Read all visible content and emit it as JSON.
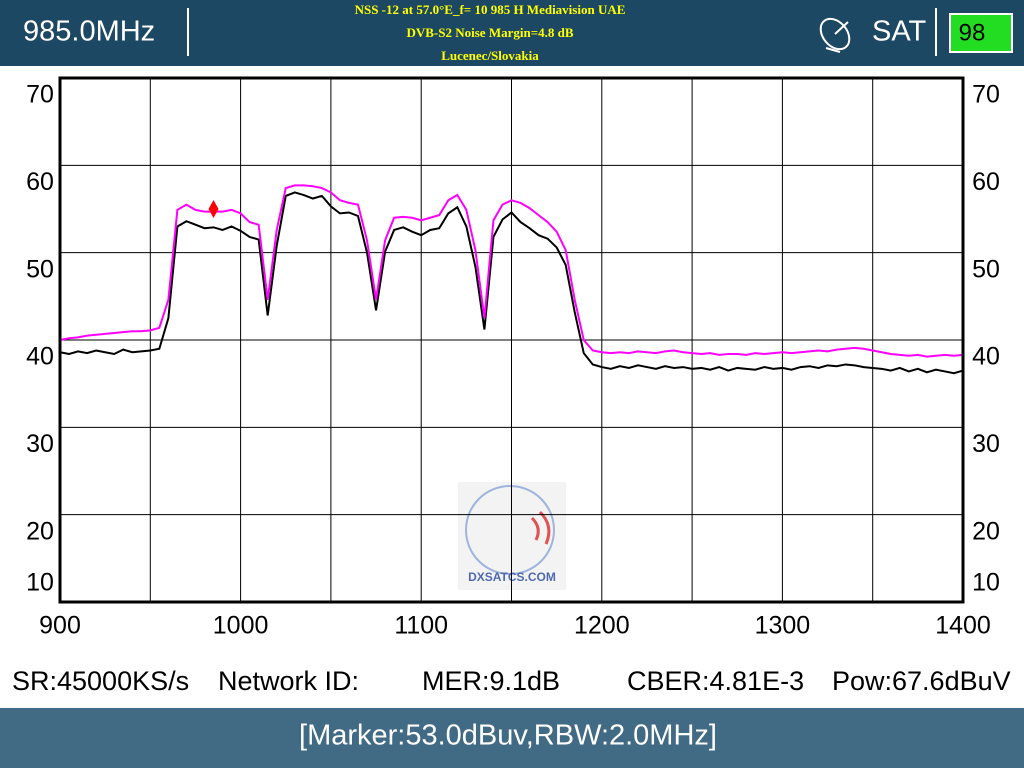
{
  "header": {
    "frequency": "985.0MHz",
    "title_lines": [
      "NSS -12 at 57.0°E_f= 10 985 H Mediavision UAE",
      "DVB-S2 Noise Margin=4.8 dB",
      "Lucenec/Slovakia"
    ],
    "mode": "SAT",
    "battery": "98"
  },
  "chart_data": {
    "type": "line",
    "x": [
      900,
      905,
      910,
      915,
      920,
      925,
      930,
      935,
      940,
      945,
      950,
      955,
      960,
      965,
      970,
      975,
      980,
      985,
      990,
      995,
      1000,
      1005,
      1010,
      1015,
      1020,
      1025,
      1030,
      1035,
      1040,
      1045,
      1050,
      1055,
      1060,
      1065,
      1070,
      1075,
      1080,
      1085,
      1090,
      1095,
      1100,
      1105,
      1110,
      1115,
      1120,
      1125,
      1130,
      1135,
      1140,
      1145,
      1150,
      1155,
      1160,
      1165,
      1170,
      1175,
      1180,
      1185,
      1190,
      1195,
      1200,
      1205,
      1210,
      1215,
      1220,
      1225,
      1230,
      1235,
      1240,
      1245,
      1250,
      1255,
      1260,
      1265,
      1270,
      1275,
      1280,
      1285,
      1290,
      1295,
      1300,
      1305,
      1310,
      1315,
      1320,
      1325,
      1330,
      1335,
      1340,
      1345,
      1350,
      1355,
      1360,
      1365,
      1370,
      1375,
      1380,
      1385,
      1390,
      1395,
      1400
    ],
    "series": [
      {
        "color": "#ff00ff",
        "values": [
          40.0,
          40.2,
          40.3,
          40.5,
          40.6,
          40.7,
          40.8,
          40.9,
          41.0,
          41.0,
          41.1,
          41.4,
          44.6,
          54.9,
          55.5,
          54.9,
          54.7,
          54.7,
          54.7,
          54.9,
          54.5,
          53.5,
          53.2,
          44.6,
          52.6,
          57.4,
          57.7,
          57.7,
          57.6,
          57.4,
          56.9,
          56.0,
          55.7,
          55.5,
          51.4,
          44.6,
          51.4,
          54.0,
          54.1,
          54.0,
          53.7,
          54.0,
          54.3,
          56.0,
          56.6,
          54.9,
          50.3,
          42.5,
          53.7,
          55.5,
          56.0,
          55.7,
          55.1,
          54.3,
          53.5,
          52.4,
          50.3,
          44.6,
          40.0,
          38.8,
          38.6,
          38.5,
          38.6,
          38.5,
          38.7,
          38.6,
          38.5,
          38.7,
          38.8,
          38.6,
          38.5,
          38.4,
          38.5,
          38.3,
          38.4,
          38.4,
          38.3,
          38.5,
          38.4,
          38.5,
          38.6,
          38.5,
          38.6,
          38.7,
          38.8,
          38.7,
          38.9,
          39.0,
          39.1,
          39.0,
          38.8,
          38.6,
          38.4,
          38.3,
          38.2,
          38.3,
          38.1,
          38.2,
          38.3,
          38.2,
          38.3
        ]
      },
      {
        "color": "#000000",
        "values": [
          38.6,
          38.4,
          38.7,
          38.5,
          38.8,
          38.6,
          38.4,
          38.9,
          38.6,
          38.7,
          38.8,
          39.0,
          42.5,
          53.0,
          53.6,
          53.2,
          52.8,
          52.9,
          52.6,
          53.0,
          52.5,
          51.8,
          51.5,
          42.8,
          50.8,
          56.5,
          56.9,
          56.6,
          56.2,
          56.5,
          55.3,
          54.5,
          54.6,
          54.2,
          50.0,
          43.4,
          50.1,
          52.6,
          52.9,
          52.4,
          52.0,
          52.6,
          52.8,
          54.5,
          55.2,
          53.0,
          48.4,
          41.2,
          51.8,
          53.8,
          54.6,
          53.5,
          52.8,
          52.0,
          51.6,
          50.6,
          48.6,
          43.2,
          38.5,
          37.2,
          36.9,
          36.7,
          37.0,
          36.8,
          37.1,
          36.9,
          36.7,
          37.0,
          36.8,
          36.9,
          36.7,
          36.8,
          36.6,
          36.9,
          36.5,
          36.8,
          36.7,
          36.6,
          36.9,
          36.7,
          36.8,
          36.6,
          36.9,
          37.0,
          36.8,
          37.1,
          37.0,
          37.2,
          37.1,
          36.9,
          36.8,
          36.7,
          36.5,
          36.8,
          36.4,
          36.7,
          36.3,
          36.6,
          36.4,
          36.2,
          36.5
        ]
      }
    ],
    "marker": {
      "x": 985,
      "y": 55,
      "color": "#ff0000"
    },
    "xlim": [
      900,
      1400
    ],
    "xticks": [
      900,
      1000,
      1100,
      1200,
      1300,
      1400
    ],
    "xminorticks": [
      950,
      1050,
      1150,
      1250,
      1350
    ],
    "ylim": [
      10,
      70
    ],
    "yticks": [
      10,
      20,
      30,
      40,
      50,
      60,
      70
    ],
    "grid": true
  },
  "watermark": "DXSATCS.COM",
  "info": [
    "SR:45000KS/s",
    "Network ID:",
    "MER:9.1dB",
    "CBER:4.81E-3",
    "Pow:67.6dBuV"
  ],
  "status": "[Marker:53.0dBuv,RBW:2.0MHz]"
}
